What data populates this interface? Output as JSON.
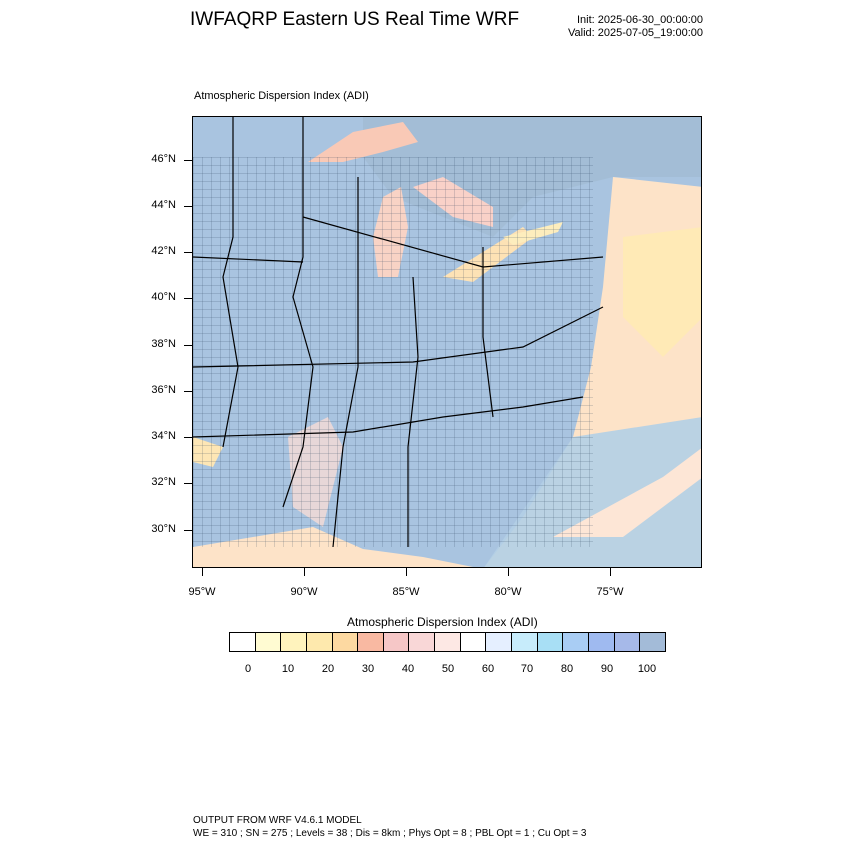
{
  "header": {
    "title": "IWFAQRP Eastern US Real Time WRF",
    "init": "Init: 2025-06-30_00:00:00",
    "valid": "Valid: 2025-07-05_19:00:00"
  },
  "map": {
    "field_title": "Atmospheric Dispersion Index   (ADI)",
    "lat_labels": [
      "46°N",
      "44°N",
      "42°N",
      "40°N",
      "38°N",
      "36°N",
      "34°N",
      "32°N",
      "30°N"
    ],
    "lon_labels": [
      "95°W",
      "90°W",
      "85°W",
      "80°W",
      "75°W"
    ],
    "colors": {
      "land_high_adi": "#a9c4e0",
      "water_mid_adi": "#a3bdd6",
      "moderate_adi": "#fde3c8",
      "low_adi": "#f7c7bd",
      "boundary": "#000000"
    }
  },
  "colorbar": {
    "title": "Atmospheric Dispersion Index  (ADI)",
    "labels": [
      "0",
      "10",
      "20",
      "30",
      "40",
      "50",
      "60",
      "70",
      "80",
      "90",
      "100"
    ],
    "colors": [
      "#ffffff",
      "#fffbd2",
      "#fff3bd",
      "#fee9ad",
      "#fdd9a1",
      "#f9b9a2",
      "#f6c7c7",
      "#f9d7d7",
      "#fde8e4",
      "#ffffff",
      "#e5efff",
      "#c7ecfb",
      "#a8dff5",
      "#a9cdf4",
      "#9fbaf0",
      "#a6b9e9",
      "#a3bbd8"
    ]
  },
  "footer": {
    "line1": "OUTPUT FROM WRF V4.6.1 MODEL",
    "line2": "WE = 310 ; SN = 275 ; Levels = 38 ; Dis = 8km ; Phys Opt = 8 ; PBL Opt = 1 ; Cu Opt = 3"
  }
}
